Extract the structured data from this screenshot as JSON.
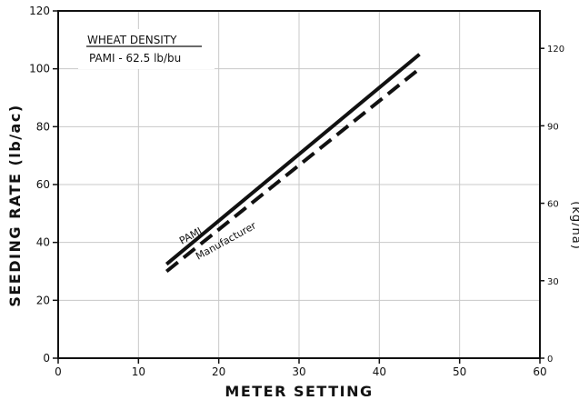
{
  "chart_data": {
    "type": "line",
    "title": "",
    "xlabel": "METER SETTING",
    "ylabel": "SEEDING RATE (lb/ac)",
    "y2label": "(kg/ha)",
    "xlim": [
      0,
      60
    ],
    "ylim": [
      0,
      120
    ],
    "y2lim": [
      0,
      134.5
    ],
    "x_ticks": [
      0,
      10,
      20,
      30,
      40,
      50,
      60
    ],
    "y_ticks": [
      0,
      20,
      40,
      60,
      80,
      100,
      120
    ],
    "y2_ticks": [
      0,
      30,
      60,
      90,
      120
    ],
    "grid": true,
    "annotation": {
      "heading": "WHEAT DENSITY",
      "text": "PAMI - 62.5 lb/bu"
    },
    "series": [
      {
        "name": "PAMI",
        "style": "solid",
        "x": [
          13.5,
          45
        ],
        "y": [
          32.5,
          105
        ]
      },
      {
        "name": "Manufacturer",
        "style": "dashed",
        "x": [
          13.5,
          45
        ],
        "y": [
          30,
          100
        ]
      }
    ]
  },
  "colors": {
    "ink": "#111111",
    "grid": "#c8c8c8",
    "background": "#ffffff"
  }
}
